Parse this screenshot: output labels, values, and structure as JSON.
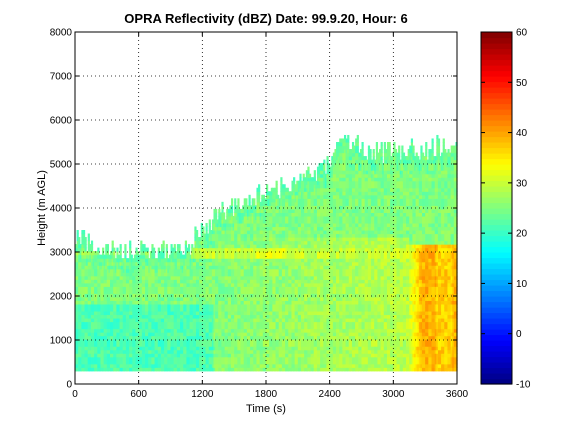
{
  "chart_data": {
    "type": "heatmap",
    "title": "OPRA Reflectivity (dBZ)  Date: 99.9.20, Hour: 6",
    "xlabel": "Time (s)",
    "ylabel": "Height (m AGL)",
    "xlim": [
      0,
      3600
    ],
    "ylim": [
      0,
      8000
    ],
    "xticks": [
      "0",
      "600",
      "1200",
      "1800",
      "2400",
      "3000",
      "3600"
    ],
    "yticks": [
      "0",
      "1000",
      "2000",
      "3000",
      "4000",
      "5000",
      "6000",
      "7000",
      "8000"
    ],
    "grid": true,
    "colorbar": {
      "range": [
        -10,
        60
      ],
      "ticks": [
        "-10",
        "0",
        "10",
        "20",
        "30",
        "40",
        "50",
        "60"
      ],
      "colormap": "jet"
    },
    "echo_base_m": 300,
    "echo_top_m": [
      [
        0,
        3300
      ],
      [
        150,
        3100
      ],
      [
        300,
        3000
      ],
      [
        600,
        3000
      ],
      [
        900,
        3000
      ],
      [
        1000,
        3000
      ],
      [
        1100,
        3200
      ],
      [
        1200,
        3500
      ],
      [
        1300,
        3700
      ],
      [
        1500,
        4000
      ],
      [
        1800,
        4300
      ],
      [
        2000,
        4500
      ],
      [
        2200,
        4700
      ],
      [
        2400,
        5000
      ],
      [
        2500,
        5500
      ],
      [
        2700,
        5300
      ],
      [
        2900,
        5200
      ],
      [
        3100,
        5300
      ],
      [
        3300,
        5300
      ],
      [
        3500,
        5400
      ],
      [
        3600,
        5200
      ]
    ],
    "bright_band_m": 3000,
    "bright_band_start_s": 1100,
    "core_start_s": 3150
  }
}
